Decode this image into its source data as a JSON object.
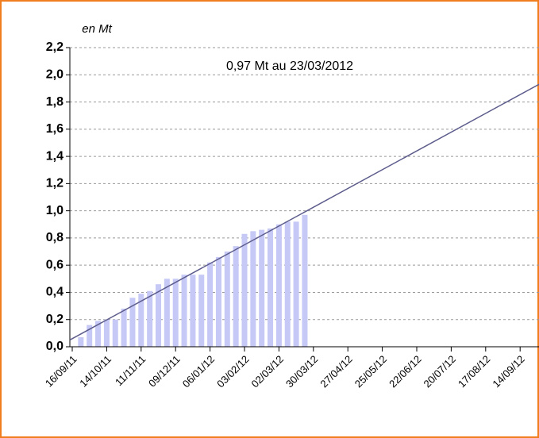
{
  "chart_data": {
    "type": "bar",
    "axis_title": "en Mt",
    "annotation": "0,97 Mt au 23/03/2012",
    "categories": [
      "16/09/11",
      null,
      null,
      null,
      "14/10/11",
      null,
      null,
      null,
      "11/11/11",
      null,
      null,
      null,
      "09/12/11",
      null,
      null,
      null,
      "06/01/12",
      null,
      null,
      null,
      "03/02/12",
      null,
      null,
      null,
      "02/03/12",
      null,
      null,
      null,
      "30/03/12",
      null,
      null,
      null,
      "27/04/12",
      null,
      null,
      null,
      "25/05/12",
      null,
      null,
      null,
      "22/06/12",
      null,
      null,
      null,
      "20/07/12",
      null,
      null,
      null,
      "17/08/12",
      null,
      null,
      null,
      "14/09/12",
      null,
      null
    ],
    "values": [
      null,
      0.07,
      0.16,
      0.19,
      0.2,
      0.2,
      0.28,
      0.36,
      0.39,
      0.41,
      0.46,
      0.5,
      0.5,
      0.53,
      0.53,
      0.53,
      0.62,
      0.66,
      0.7,
      0.74,
      0.83,
      0.85,
      0.86,
      0.87,
      0.9,
      0.92,
      0.92,
      0.97,
      null,
      null,
      null,
      null,
      null,
      null,
      null,
      null,
      null,
      null,
      null,
      null,
      null,
      null,
      null,
      null,
      null,
      null,
      null,
      null,
      null,
      null,
      null,
      null,
      null,
      null,
      null
    ],
    "color": "#c6c8f6",
    "trend": {
      "color": "#5c5c8c",
      "values": [
        0.05,
        1.93
      ]
    },
    "ylim": [
      0,
      2.2
    ],
    "yticks": [
      {
        "value": 0,
        "label": "0,0"
      },
      {
        "value": 0.2,
        "label": "0,2"
      },
      {
        "value": 0.4,
        "label": "0,4"
      },
      {
        "value": 0.6,
        "label": "0,6"
      },
      {
        "value": 0.8,
        "label": "0,8"
      },
      {
        "value": 1.0,
        "label": "1,0"
      },
      {
        "value": 1.2,
        "label": "1,2"
      },
      {
        "value": 1.4,
        "label": "1,4"
      },
      {
        "value": 1.6,
        "label": "1,6"
      },
      {
        "value": 1.8,
        "label": "1,8"
      },
      {
        "value": 2.0,
        "label": "2,0"
      },
      {
        "value": 2.2,
        "label": "2,2"
      }
    ],
    "grid": true
  }
}
